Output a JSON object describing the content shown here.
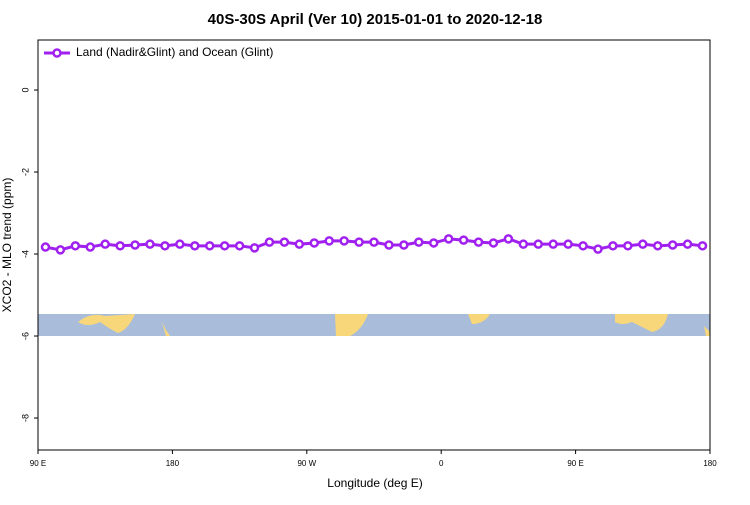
{
  "chart_data": {
    "type": "line",
    "title": "40S-30S April (Ver 10)   2015-01-01 to 2020-12-18",
    "x_label": "Longitude (deg E)",
    "y_label": "XCO2 - MLO trend (ppm)",
    "x": [
      95,
      105,
      115,
      125,
      135,
      145,
      155,
      165,
      175,
      185,
      195,
      205,
      215,
      225,
      235,
      245,
      255,
      265,
      275,
      285,
      295,
      305,
      315,
      325,
      335,
      345,
      355,
      365,
      375,
      385,
      395,
      405,
      415,
      425,
      435,
      445,
      455,
      465,
      475,
      485,
      495,
      505,
      515,
      525,
      535
    ],
    "series": [
      {
        "name": "Land (Nadir&Glint) and Ocean (Glint)",
        "color": "#a020f0",
        "values": [
          -3.83,
          -3.9,
          -3.8,
          -3.83,
          -3.76,
          -3.8,
          -3.78,
          -3.76,
          -3.8,
          -3.76,
          -3.8,
          -3.8,
          -3.8,
          -3.8,
          -3.85,
          -3.71,
          -3.71,
          -3.76,
          -3.73,
          -3.68,
          -3.68,
          -3.71,
          -3.71,
          -3.78,
          -3.78,
          -3.71,
          -3.73,
          -3.63,
          -3.66,
          -3.71,
          -3.73,
          -3.63,
          -3.76,
          -3.76,
          -3.76,
          -3.76,
          -3.8,
          -3.88,
          -3.8,
          -3.8,
          -3.76,
          -3.8,
          -3.78,
          -3.76,
          -3.8
        ]
      }
    ],
    "xlim": [
      90,
      540
    ],
    "xticks": [
      {
        "value": 90,
        "label": "90 E"
      },
      180,
      {
        "value": 270,
        "label": "90 W"
      },
      0,
      {
        "value": 450,
        "label": "90 E"
      },
      {
        "value": 540,
        "label": "180"
      }
    ],
    "ylim": [
      -8.78,
      1.22
    ],
    "yticks": [
      0,
      -2,
      -4,
      -6,
      -8
    ],
    "legend": "top-left"
  }
}
